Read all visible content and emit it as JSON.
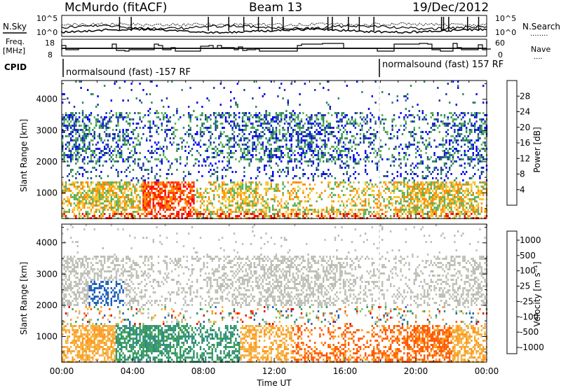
{
  "header": {
    "station": "McMurdo (fitACF)",
    "beam": "Beam 13",
    "date": "19/Dec/2012"
  },
  "labels": {
    "nsky": "N.Sky",
    "nsearch": "N.Search",
    "nsearch_dots": "........",
    "freq": "Freq.",
    "freq_unit": "[MHz]",
    "nave": "Nave",
    "nave_dots": "....",
    "cpid": "CPID",
    "mode_left": "normalsound (fast) -157 RF",
    "mode_right": "normalsound (fast) 157 RF",
    "noise_left_top": "10^5",
    "noise_left_bot": "10^0",
    "noise_right_top": "10^5",
    "noise_right_bot": "10^0",
    "freq_top": "18",
    "freq_bot": "8",
    "nave_top": "60",
    "nave_bot": "0"
  },
  "colors": {
    "power": [
      "#0000ff",
      "#1e3ca0",
      "#2e8b57",
      "#59b35a",
      "#f7c52e",
      "#ff8c00",
      "#ff4000",
      "#ff0000"
    ],
    "velocity": [
      "#e60000",
      "#ff5a00",
      "#ff9a1e",
      "#f2b64a",
      "#c0c0b8",
      "#b8b8b0",
      "#7cc86a",
      "#3fa44a",
      "#2f8f7a",
      "#1f5fb8"
    ]
  },
  "chart_data": [
    {
      "type": "heatmap",
      "title": "Power",
      "ylabel": "Slant Range [km]",
      "xlabel": "Time UT",
      "ylim": [
        180,
        4600
      ],
      "yticks": [
        1000,
        2000,
        3000,
        4000
      ],
      "xticks": [
        "00:00",
        "04:00",
        "08:00",
        "12:00",
        "16:00",
        "20:00",
        "00:00"
      ],
      "colorbar": {
        "label": "Power [dB]",
        "ticks": [
          "4",
          "8",
          "12",
          "16",
          "20",
          "24",
          "28"
        ],
        "range": [
          0,
          30
        ]
      },
      "scatter_bands": [
        {
          "from_hour": 0.0,
          "to_hour": 3.0,
          "range_km": [
            300,
            1400
          ],
          "level": "high"
        },
        {
          "from_hour": 4.5,
          "to_hour": 7.5,
          "range_km": [
            300,
            1100
          ],
          "level": "very high"
        },
        {
          "from_hour": 0.0,
          "to_hour": 24.0,
          "range_km": [
            2000,
            3600
          ],
          "level": "low-medium"
        }
      ]
    },
    {
      "type": "heatmap",
      "title": "Velocity",
      "ylabel": "Slant Range [km]",
      "xlabel": "Time UT",
      "ylim": [
        180,
        4600
      ],
      "yticks": [
        1000,
        2000,
        3000,
        4000
      ],
      "xticks": [
        "00:00",
        "04:00",
        "08:00",
        "12:00",
        "16:00",
        "20:00",
        "00:00"
      ],
      "colorbar": {
        "label": "Velocity [m s^-1]",
        "ticks": [
          "1000",
          "500",
          "100",
          "25",
          "-25",
          "-100",
          "-500",
          "-1000"
        ]
      }
    }
  ],
  "axes": {
    "x_title": "Time UT",
    "y_title": "Slant Range [km]",
    "power_bar_label": "Power [dB]",
    "velocity_bar_label": "Velocity [m s⁻¹]"
  }
}
